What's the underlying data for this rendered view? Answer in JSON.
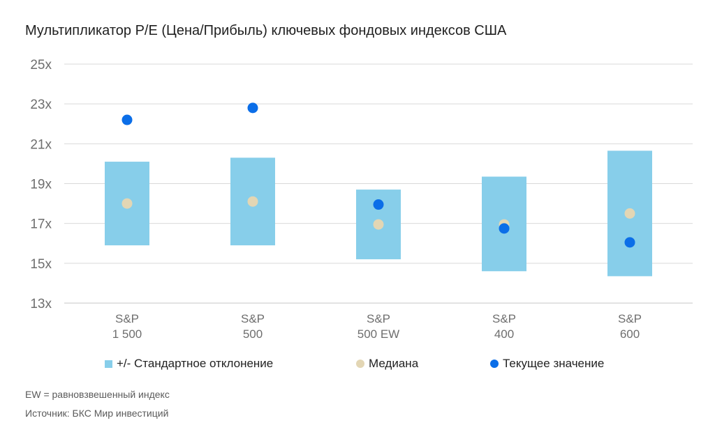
{
  "title": "Мультипликатор P/E (Цена/Прибыль) ключевых фондовых индексов США",
  "colors": {
    "band": "#87ceea",
    "median": "#e3d6b4",
    "current": "#0b6ee8",
    "grid": "#d9d9d9"
  },
  "chart_data": {
    "type": "range-dot",
    "title": "Мультипликатор P/E (Цена/Прибыль) ключевых фондовых индексов США",
    "ylim": [
      13,
      25
    ],
    "yticks": [
      13,
      15,
      17,
      19,
      21,
      23,
      25
    ],
    "ytick_labels": [
      "13x",
      "15x",
      "17x",
      "19x",
      "21x",
      "23x",
      "25x"
    ],
    "categories": [
      {
        "line1": "S&P",
        "line2": "1 500",
        "low": 15.9,
        "high": 20.1,
        "median": 18.0,
        "current": 22.2
      },
      {
        "line1": "S&P",
        "line2": "500",
        "low": 15.9,
        "high": 20.3,
        "median": 18.1,
        "current": 22.8
      },
      {
        "line1": "S&P",
        "line2": "500 EW",
        "low": 15.2,
        "high": 18.7,
        "median": 16.95,
        "current": 17.95
      },
      {
        "line1": "S&P",
        "line2": "400",
        "low": 14.6,
        "high": 19.35,
        "median": 16.95,
        "current": 16.75
      },
      {
        "line1": "S&P",
        "line2": "600",
        "low": 14.35,
        "high": 20.65,
        "median": 17.5,
        "current": 16.05
      }
    ],
    "legend": {
      "band": "+/- Стандартное отклонение",
      "median": "Медиана",
      "current": "Текущее значение"
    }
  },
  "notes": {
    "ew": "EW = равновзвешенный индекс",
    "source": "Источник: БКС Мир инвестиций"
  }
}
